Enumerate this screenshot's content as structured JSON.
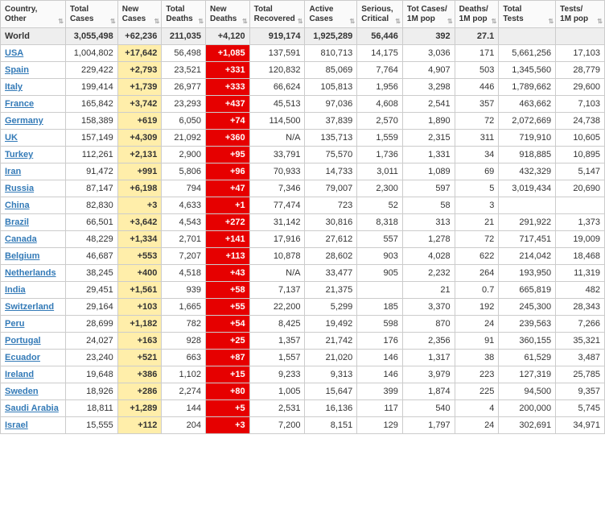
{
  "columns": [
    {
      "label": "Country,\nOther",
      "align": "left"
    },
    {
      "label": "Total\nCases",
      "align": "right"
    },
    {
      "label": "New\nCases",
      "align": "right"
    },
    {
      "label": "Total\nDeaths",
      "align": "right"
    },
    {
      "label": "New\nDeaths",
      "align": "right"
    },
    {
      "label": "Total\nRecovered",
      "align": "right"
    },
    {
      "label": "Active\nCases",
      "align": "right"
    },
    {
      "label": "Serious,\nCritical",
      "align": "right"
    },
    {
      "label": "Tot Cases/\n1M pop",
      "align": "right"
    },
    {
      "label": "Deaths/\n1M pop",
      "align": "right"
    },
    {
      "label": "Total\nTests",
      "align": "right"
    },
    {
      "label": "Tests/\n1M pop",
      "align": "right"
    }
  ],
  "highlight": {
    "new_cases_bg": "#ffeeaa",
    "new_deaths_bg": "#e60000",
    "new_deaths_fg": "#ffffff",
    "world_row_bg": "#eeeeee",
    "link_color": "#337ab7"
  },
  "world_row": {
    "name": "World",
    "cells": [
      "3,055,498",
      "+62,236",
      "211,035",
      "+4,120",
      "919,174",
      "1,925,289",
      "56,446",
      "392",
      "27.1",
      "",
      ""
    ]
  },
  "rows": [
    {
      "name": "USA",
      "link": true,
      "cells": [
        "1,004,802",
        "+17,642",
        "56,498",
        "+1,085",
        "137,591",
        "810,713",
        "14,175",
        "3,036",
        "171",
        "5,661,256",
        "17,103"
      ]
    },
    {
      "name": "Spain",
      "link": true,
      "cells": [
        "229,422",
        "+2,793",
        "23,521",
        "+331",
        "120,832",
        "85,069",
        "7,764",
        "4,907",
        "503",
        "1,345,560",
        "28,779"
      ]
    },
    {
      "name": "Italy",
      "link": true,
      "cells": [
        "199,414",
        "+1,739",
        "26,977",
        "+333",
        "66,624",
        "105,813",
        "1,956",
        "3,298",
        "446",
        "1,789,662",
        "29,600"
      ]
    },
    {
      "name": "France",
      "link": true,
      "cells": [
        "165,842",
        "+3,742",
        "23,293",
        "+437",
        "45,513",
        "97,036",
        "4,608",
        "2,541",
        "357",
        "463,662",
        "7,103"
      ]
    },
    {
      "name": "Germany",
      "link": true,
      "cells": [
        "158,389",
        "+619",
        "6,050",
        "+74",
        "114,500",
        "37,839",
        "2,570",
        "1,890",
        "72",
        "2,072,669",
        "24,738"
      ]
    },
    {
      "name": "UK",
      "link": true,
      "cells": [
        "157,149",
        "+4,309",
        "21,092",
        "+360",
        "N/A",
        "135,713",
        "1,559",
        "2,315",
        "311",
        "719,910",
        "10,605"
      ]
    },
    {
      "name": "Turkey",
      "link": true,
      "cells": [
        "112,261",
        "+2,131",
        "2,900",
        "+95",
        "33,791",
        "75,570",
        "1,736",
        "1,331",
        "34",
        "918,885",
        "10,895"
      ]
    },
    {
      "name": "Iran",
      "link": true,
      "cells": [
        "91,472",
        "+991",
        "5,806",
        "+96",
        "70,933",
        "14,733",
        "3,011",
        "1,089",
        "69",
        "432,329",
        "5,147"
      ]
    },
    {
      "name": "Russia",
      "link": true,
      "cells": [
        "87,147",
        "+6,198",
        "794",
        "+47",
        "7,346",
        "79,007",
        "2,300",
        "597",
        "5",
        "3,019,434",
        "20,690"
      ]
    },
    {
      "name": "China",
      "link": true,
      "cells": [
        "82,830",
        "+3",
        "4,633",
        "+1",
        "77,474",
        "723",
        "52",
        "58",
        "3",
        "",
        ""
      ]
    },
    {
      "name": "Brazil",
      "link": true,
      "cells": [
        "66,501",
        "+3,642",
        "4,543",
        "+272",
        "31,142",
        "30,816",
        "8,318",
        "313",
        "21",
        "291,922",
        "1,373"
      ]
    },
    {
      "name": "Canada",
      "link": true,
      "cells": [
        "48,229",
        "+1,334",
        "2,701",
        "+141",
        "17,916",
        "27,612",
        "557",
        "1,278",
        "72",
        "717,451",
        "19,009"
      ]
    },
    {
      "name": "Belgium",
      "link": true,
      "cells": [
        "46,687",
        "+553",
        "7,207",
        "+113",
        "10,878",
        "28,602",
        "903",
        "4,028",
        "622",
        "214,042",
        "18,468"
      ]
    },
    {
      "name": "Netherlands",
      "link": true,
      "cells": [
        "38,245",
        "+400",
        "4,518",
        "+43",
        "N/A",
        "33,477",
        "905",
        "2,232",
        "264",
        "193,950",
        "11,319"
      ]
    },
    {
      "name": "India",
      "link": true,
      "cells": [
        "29,451",
        "+1,561",
        "939",
        "+58",
        "7,137",
        "21,375",
        "",
        "21",
        "0.7",
        "665,819",
        "482"
      ]
    },
    {
      "name": "Switzerland",
      "link": true,
      "cells": [
        "29,164",
        "+103",
        "1,665",
        "+55",
        "22,200",
        "5,299",
        "185",
        "3,370",
        "192",
        "245,300",
        "28,343"
      ]
    },
    {
      "name": "Peru",
      "link": true,
      "cells": [
        "28,699",
        "+1,182",
        "782",
        "+54",
        "8,425",
        "19,492",
        "598",
        "870",
        "24",
        "239,563",
        "7,266"
      ]
    },
    {
      "name": "Portugal",
      "link": true,
      "cells": [
        "24,027",
        "+163",
        "928",
        "+25",
        "1,357",
        "21,742",
        "176",
        "2,356",
        "91",
        "360,155",
        "35,321"
      ]
    },
    {
      "name": "Ecuador",
      "link": true,
      "cells": [
        "23,240",
        "+521",
        "663",
        "+87",
        "1,557",
        "21,020",
        "146",
        "1,317",
        "38",
        "61,529",
        "3,487"
      ]
    },
    {
      "name": "Ireland",
      "link": true,
      "cells": [
        "19,648",
        "+386",
        "1,102",
        "+15",
        "9,233",
        "9,313",
        "146",
        "3,979",
        "223",
        "127,319",
        "25,785"
      ]
    },
    {
      "name": "Sweden",
      "link": true,
      "cells": [
        "18,926",
        "+286",
        "2,274",
        "+80",
        "1,005",
        "15,647",
        "399",
        "1,874",
        "225",
        "94,500",
        "9,357"
      ]
    },
    {
      "name": "Saudi Arabia",
      "link": true,
      "cells": [
        "18,811",
        "+1,289",
        "144",
        "+5",
        "2,531",
        "16,136",
        "117",
        "540",
        "4",
        "200,000",
        "5,745"
      ]
    },
    {
      "name": "Israel",
      "link": true,
      "cells": [
        "15,555",
        "+112",
        "204",
        "+3",
        "7,200",
        "8,151",
        "129",
        "1,797",
        "24",
        "302,691",
        "34,971"
      ]
    }
  ]
}
